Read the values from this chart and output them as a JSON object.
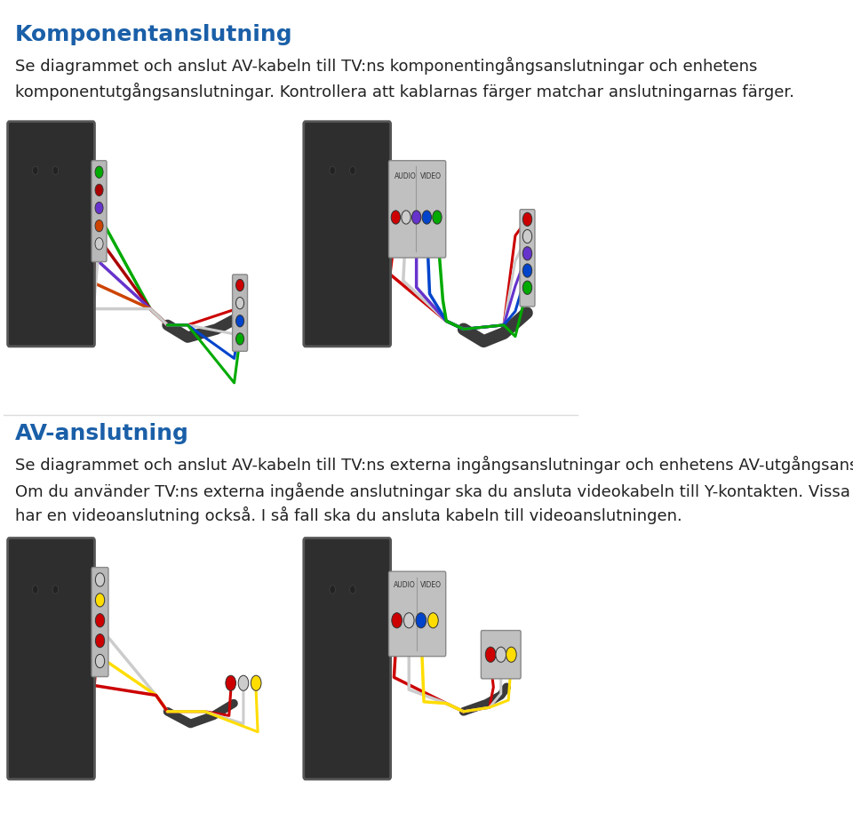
{
  "title1": "Komponentanslutning",
  "title2": "AV-anslutning",
  "title_color": "#1a5fa8",
  "title_fontsize": 18,
  "body_fontsize": 13,
  "body_color": "#222222",
  "bg_color": "#ffffff",
  "text1_line1": "Se diagrammet och anslut AV-kabeln till TV:ns komponentingångsanslutningar och enhetens",
  "text1_line2": "komponentutgångsanslutningar. Kontrollera att kablarnas färger matchar anslutningarnas färger.",
  "text2_line1": "Se diagrammet och anslut AV-kabeln till TV:ns externa ingångsanslutningar och enhetens AV-utgångsanslutningar.",
  "text3_line1": "Om du använder TV:ns externa ingående anslutningar ska du ansluta videokabeln till Y-kontakten. Vissa modeller",
  "text3_line2": "har en videoanslutning också. I så fall ska du ansluta kabeln till videoanslutningen."
}
